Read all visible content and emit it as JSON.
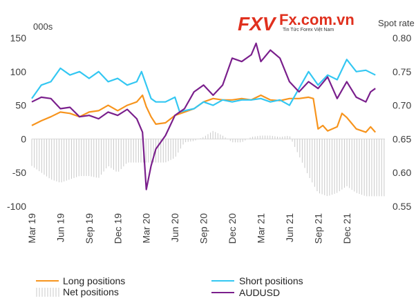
{
  "logo": {
    "mark": "FXV",
    "site": "Fx.com.vn",
    "tagline": "Tin Tức Forex Việt Nam",
    "color": "#e0301e"
  },
  "chart_data": {
    "type": "line",
    "left_axis": {
      "unit": "000s",
      "range": [
        -100,
        150
      ],
      "ticks": [
        150,
        100,
        50,
        0,
        -50,
        -100
      ]
    },
    "right_axis": {
      "unit": "Spot rate",
      "range": [
        0.55,
        0.8
      ],
      "ticks": [
        "0.80",
        "0.75",
        "0.70",
        "0.65",
        "0.60",
        "0.55"
      ]
    },
    "x_range": [
      0,
      37
    ],
    "x_ticks": [
      {
        "label": "Mar 19",
        "x": 0
      },
      {
        "label": "Jun 19",
        "x": 3
      },
      {
        "label": "Sep 19",
        "x": 6
      },
      {
        "label": "Dec 19",
        "x": 9
      },
      {
        "label": "Mar 20",
        "x": 12
      },
      {
        "label": "Jun 20",
        "x": 15
      },
      {
        "label": "Sep 20",
        "x": 18
      },
      {
        "label": "Dec 20",
        "x": 21
      },
      {
        "label": "Mar 21",
        "x": 24
      },
      {
        "label": "Jun 21",
        "x": 27
      },
      {
        "label": "Sep 21",
        "x": 30
      },
      {
        "label": "Dec 21",
        "x": 33
      }
    ],
    "series": [
      {
        "name": "Long positions",
        "axis": "left",
        "color": "#f7941d",
        "style": "line",
        "points": [
          [
            0,
            20
          ],
          [
            1,
            27
          ],
          [
            2,
            33
          ],
          [
            3,
            40
          ],
          [
            4,
            38
          ],
          [
            5,
            33
          ],
          [
            6,
            40
          ],
          [
            7,
            42
          ],
          [
            8,
            50
          ],
          [
            9,
            42
          ],
          [
            10,
            50
          ],
          [
            11,
            55
          ],
          [
            11.6,
            65
          ],
          [
            12,
            48
          ],
          [
            12.5,
            33
          ],
          [
            13,
            22
          ],
          [
            14,
            24
          ],
          [
            15,
            35
          ],
          [
            16,
            40
          ],
          [
            17,
            45
          ],
          [
            18,
            55
          ],
          [
            19,
            60
          ],
          [
            20,
            58
          ],
          [
            21,
            58
          ],
          [
            22,
            60
          ],
          [
            23,
            58
          ],
          [
            24,
            65
          ],
          [
            25,
            58
          ],
          [
            26,
            57
          ],
          [
            27,
            60
          ],
          [
            28,
            60
          ],
          [
            29,
            62
          ],
          [
            29.5,
            60
          ],
          [
            30,
            15
          ],
          [
            30.5,
            20
          ],
          [
            31,
            12
          ],
          [
            32,
            18
          ],
          [
            32.5,
            38
          ],
          [
            33,
            32
          ],
          [
            34,
            15
          ],
          [
            35,
            10
          ],
          [
            35.5,
            18
          ],
          [
            36,
            10
          ]
        ]
      },
      {
        "name": "Short positions",
        "axis": "left",
        "color": "#33c7f2",
        "style": "line",
        "points": [
          [
            0,
            60
          ],
          [
            1,
            80
          ],
          [
            2,
            85
          ],
          [
            3,
            105
          ],
          [
            4,
            95
          ],
          [
            5,
            100
          ],
          [
            6,
            90
          ],
          [
            7,
            100
          ],
          [
            8,
            85
          ],
          [
            9,
            90
          ],
          [
            10,
            80
          ],
          [
            11,
            85
          ],
          [
            11.5,
            100
          ],
          [
            12,
            80
          ],
          [
            12.5,
            60
          ],
          [
            13,
            55
          ],
          [
            14,
            55
          ],
          [
            15,
            62
          ],
          [
            15.5,
            40
          ],
          [
            16,
            42
          ],
          [
            17,
            45
          ],
          [
            18,
            55
          ],
          [
            19,
            50
          ],
          [
            20,
            58
          ],
          [
            21,
            55
          ],
          [
            22,
            58
          ],
          [
            23,
            58
          ],
          [
            24,
            60
          ],
          [
            25,
            55
          ],
          [
            26,
            58
          ],
          [
            27,
            50
          ],
          [
            28,
            75
          ],
          [
            29,
            100
          ],
          [
            30,
            80
          ],
          [
            31,
            95
          ],
          [
            32,
            88
          ],
          [
            33,
            118
          ],
          [
            34,
            100
          ],
          [
            35,
            102
          ],
          [
            36,
            95
          ]
        ]
      },
      {
        "name": "Net positions",
        "axis": "left",
        "color": "#c9c9c9",
        "style": "bars",
        "points": [
          [
            0,
            -40
          ],
          [
            1,
            -50
          ],
          [
            2,
            -60
          ],
          [
            3,
            -65
          ],
          [
            4,
            -60
          ],
          [
            5,
            -55
          ],
          [
            6,
            -55
          ],
          [
            7,
            -58
          ],
          [
            8,
            -40
          ],
          [
            9,
            -50
          ],
          [
            10,
            -35
          ],
          [
            11,
            -35
          ],
          [
            12,
            -35
          ],
          [
            13,
            -35
          ],
          [
            14,
            -35
          ],
          [
            15,
            -28
          ],
          [
            16,
            -5
          ],
          [
            17,
            -3
          ],
          [
            18,
            3
          ],
          [
            19,
            12
          ],
          [
            20,
            5
          ],
          [
            21,
            -5
          ],
          [
            22,
            -5
          ],
          [
            23,
            3
          ],
          [
            24,
            5
          ],
          [
            25,
            5
          ],
          [
            26,
            3
          ],
          [
            27,
            5
          ],
          [
            28,
            -25
          ],
          [
            29,
            -55
          ],
          [
            30,
            -80
          ],
          [
            31,
            -85
          ],
          [
            32,
            -80
          ],
          [
            33,
            -70
          ],
          [
            34,
            -80
          ],
          [
            35,
            -85
          ],
          [
            36,
            -85
          ]
        ]
      },
      {
        "name": "AUDUSD",
        "axis": "right",
        "color": "#7a1f8c",
        "style": "line",
        "points": [
          [
            0,
            0.705
          ],
          [
            1,
            0.712
          ],
          [
            2,
            0.71
          ],
          [
            3,
            0.695
          ],
          [
            4,
            0.697
          ],
          [
            5,
            0.683
          ],
          [
            6,
            0.685
          ],
          [
            7,
            0.68
          ],
          [
            8,
            0.69
          ],
          [
            9,
            0.685
          ],
          [
            10,
            0.694
          ],
          [
            11,
            0.68
          ],
          [
            11.6,
            0.66
          ],
          [
            12,
            0.575
          ],
          [
            12.5,
            0.61
          ],
          [
            13,
            0.635
          ],
          [
            14,
            0.655
          ],
          [
            15,
            0.685
          ],
          [
            16,
            0.695
          ],
          [
            17,
            0.72
          ],
          [
            18,
            0.73
          ],
          [
            19,
            0.715
          ],
          [
            20,
            0.73
          ],
          [
            21,
            0.77
          ],
          [
            22,
            0.765
          ],
          [
            23,
            0.775
          ],
          [
            23.5,
            0.792
          ],
          [
            24,
            0.765
          ],
          [
            25,
            0.782
          ],
          [
            26,
            0.77
          ],
          [
            27,
            0.735
          ],
          [
            28,
            0.72
          ],
          [
            29,
            0.735
          ],
          [
            30,
            0.725
          ],
          [
            31,
            0.742
          ],
          [
            32,
            0.71
          ],
          [
            33,
            0.735
          ],
          [
            34,
            0.712
          ],
          [
            35,
            0.705
          ],
          [
            35.5,
            0.72
          ],
          [
            36,
            0.725
          ]
        ]
      }
    ],
    "legend": {
      "placement": "bottom",
      "items": [
        "Long positions",
        "Short positions",
        "Net positions",
        "AUDUSD"
      ]
    }
  }
}
